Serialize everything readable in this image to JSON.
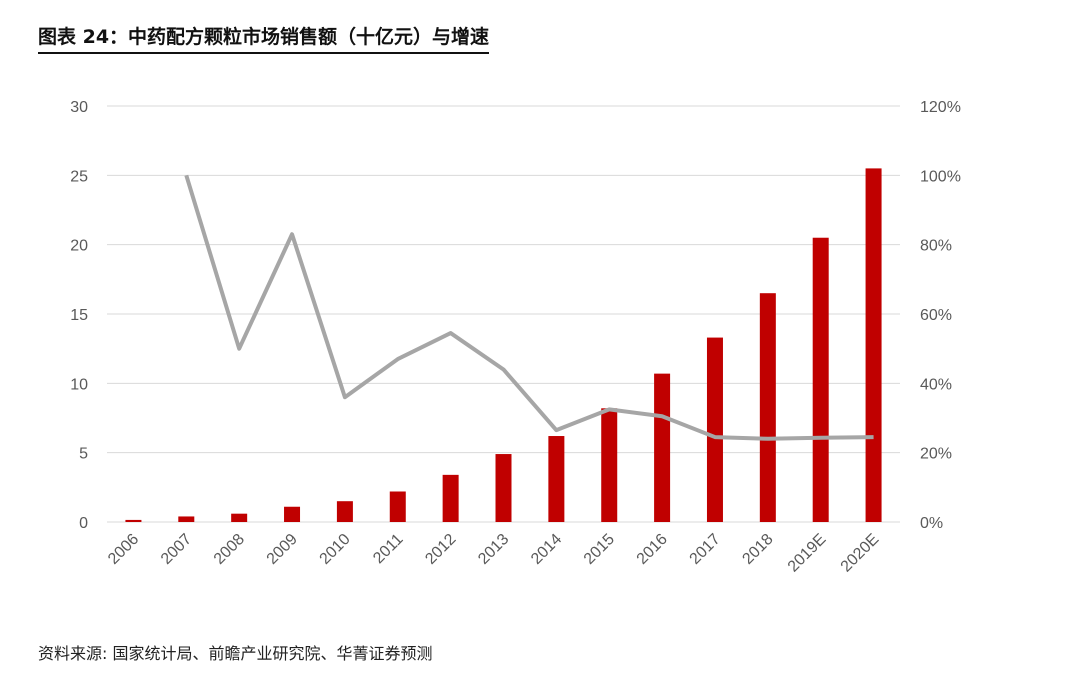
{
  "title": "图表 24：中药配方颗粒市场销售额（十亿元）与增速",
  "source": "资料来源: 国家统计局、前瞻产业研究院、华菁证券预测",
  "colors": {
    "bar": "#C00000",
    "line": "#A6A6A6",
    "grid": "#D9D9D9"
  },
  "chart_data": {
    "type": "bar",
    "title": "中药配方颗粒市场销售额（十亿元）与增速",
    "categories": [
      "2006",
      "2007",
      "2008",
      "2009",
      "2010",
      "2011",
      "2012",
      "2013",
      "2014",
      "2015",
      "2016",
      "2017",
      "2018",
      "2019E",
      "2020E"
    ],
    "series": [
      {
        "name": "销售额（十亿元）",
        "type": "bar",
        "axis": "left",
        "values": [
          0.15,
          0.4,
          0.6,
          1.1,
          1.5,
          2.2,
          3.4,
          4.9,
          6.2,
          8.2,
          10.7,
          13.3,
          16.5,
          20.5,
          25.5
        ]
      },
      {
        "name": "增速",
        "type": "line",
        "axis": "right",
        "values": [
          null,
          100,
          50,
          83,
          36,
          47,
          54.5,
          44,
          26.5,
          32.5,
          30.5,
          24.5,
          24,
          24.3,
          24.5
        ]
      }
    ],
    "ylim_left": [
      0,
      30
    ],
    "yticks_left": [
      "0",
      "5",
      "10",
      "15",
      "20",
      "25",
      "30"
    ],
    "ylim_right": [
      0,
      120
    ],
    "yticks_right": [
      "0%",
      "20%",
      "40%",
      "60%",
      "80%",
      "100%",
      "120%"
    ],
    "grid": true
  }
}
